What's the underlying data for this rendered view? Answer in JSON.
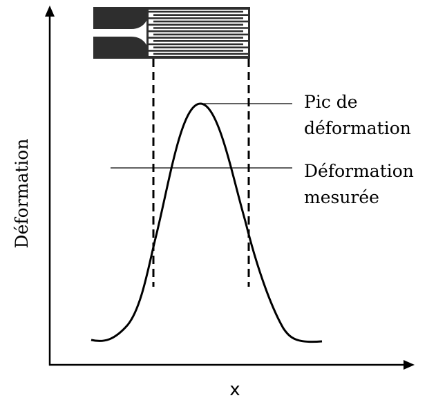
{
  "axes": {
    "y_label": "Déformation",
    "x_label": "x"
  },
  "annotations": [
    {
      "lines": [
        "Pic de",
        "déformation"
      ]
    },
    {
      "lines": [
        "Déformation",
        "mesurée"
      ]
    }
  ]
}
